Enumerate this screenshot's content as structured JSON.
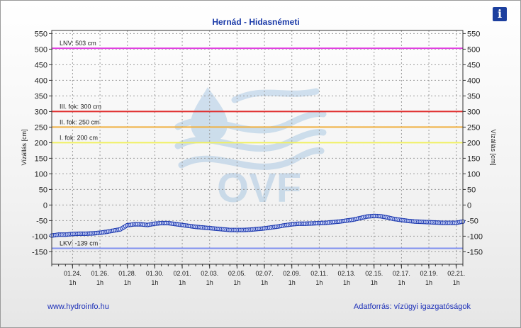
{
  "info_icon": {
    "name": "info-icon",
    "glyph": "i"
  },
  "footer": {
    "site": "www.hydroinfo.hu",
    "source": "Adatforrás: vízügyi igazgatóságok"
  },
  "watermark": {
    "text": "OVF"
  },
  "colors": {
    "series": "#1f3bb0",
    "lnv": "#e040e0",
    "fok3": "#e03030",
    "fok2": "#f0b040",
    "fok1": "#f0f060",
    "lkv": "#8090f0",
    "title": "#1a3aa8",
    "footer": "#1c2fb8"
  },
  "chart_data": {
    "type": "line",
    "title": "Hernád - Hidasnémeti",
    "ylabel_left": "Vízállás [cm]",
    "ylabel_right": "Vízállás [cm]",
    "ylim": [
      -190,
      560
    ],
    "yticks": [
      550,
      500,
      450,
      400,
      350,
      300,
      250,
      200,
      150,
      100,
      50,
      0,
      -50,
      -100,
      -150
    ],
    "grid": true,
    "x_range_days": [
      "01.22. 12h",
      "02.21. 12h"
    ],
    "x_ticks": [
      {
        "date": "01.24.",
        "hour": "1h"
      },
      {
        "date": "01.26.",
        "hour": "1h"
      },
      {
        "date": "01.28.",
        "hour": "1h"
      },
      {
        "date": "01.30.",
        "hour": "1h"
      },
      {
        "date": "02.01.",
        "hour": "1h"
      },
      {
        "date": "02.03.",
        "hour": "1h"
      },
      {
        "date": "02.05.",
        "hour": "1h"
      },
      {
        "date": "02.07.",
        "hour": "1h"
      },
      {
        "date": "02.09.",
        "hour": "1h"
      },
      {
        "date": "02.11.",
        "hour": "1h"
      },
      {
        "date": "02.13.",
        "hour": "1h"
      },
      {
        "date": "02.15.",
        "hour": "1h"
      },
      {
        "date": "02.17.",
        "hour": "1h"
      },
      {
        "date": "02.19.",
        "hour": "1h"
      },
      {
        "date": "02.21.",
        "hour": "1h"
      }
    ],
    "reference_lines": [
      {
        "label": "LNV: 503 cm",
        "value": 503,
        "color": "#e040e0"
      },
      {
        "label": "III. fok: 300 cm",
        "value": 300,
        "color": "#e03030"
      },
      {
        "label": "II. fok: 250 cm",
        "value": 250,
        "color": "#f0b040"
      },
      {
        "label": "I. fok: 200 cm",
        "value": 200,
        "color": "#f0f060"
      },
      {
        "label": "LKV: -139 cm",
        "value": -139,
        "color": "#8090f0"
      }
    ],
    "series": [
      {
        "points": [
          [
            "01.22. 12h",
            -98
          ],
          [
            "01.23. 00h",
            -95
          ],
          [
            "01.23. 12h",
            -95
          ],
          [
            "01.24. 00h",
            -93
          ],
          [
            "01.24. 12h",
            -92
          ],
          [
            "01.25. 00h",
            -92
          ],
          [
            "01.25. 12h",
            -91
          ],
          [
            "01.26. 00h",
            -89
          ],
          [
            "01.26. 12h",
            -86
          ],
          [
            "01.27. 00h",
            -82
          ],
          [
            "01.27. 12h",
            -78
          ],
          [
            "01.28. 00h",
            -65
          ],
          [
            "01.28. 12h",
            -62
          ],
          [
            "01.29. 00h",
            -62
          ],
          [
            "01.29. 12h",
            -64
          ],
          [
            "01.30. 00h",
            -60
          ],
          [
            "01.30. 12h",
            -58
          ],
          [
            "01.31. 00h",
            -58
          ],
          [
            "01.31. 12h",
            -61
          ],
          [
            "02.01. 00h",
            -64
          ],
          [
            "02.01. 12h",
            -67
          ],
          [
            "02.02. 00h",
            -70
          ],
          [
            "02.02. 12h",
            -72
          ],
          [
            "02.03. 00h",
            -74
          ],
          [
            "02.03. 12h",
            -76
          ],
          [
            "02.04. 00h",
            -78
          ],
          [
            "02.04. 12h",
            -80
          ],
          [
            "02.05. 00h",
            -80
          ],
          [
            "02.05. 12h",
            -80
          ],
          [
            "02.06. 00h",
            -79
          ],
          [
            "02.06. 12h",
            -77
          ],
          [
            "02.07. 00h",
            -75
          ],
          [
            "02.07. 12h",
            -72
          ],
          [
            "02.08. 00h",
            -69
          ],
          [
            "02.08. 12h",
            -65
          ],
          [
            "02.09. 00h",
            -62
          ],
          [
            "02.09. 12h",
            -60
          ],
          [
            "02.10. 00h",
            -60
          ],
          [
            "02.10. 12h",
            -59
          ],
          [
            "02.11. 00h",
            -58
          ],
          [
            "02.11. 12h",
            -57
          ],
          [
            "02.12. 00h",
            -55
          ],
          [
            "02.12. 12h",
            -53
          ],
          [
            "02.13. 00h",
            -50
          ],
          [
            "02.13. 12h",
            -47
          ],
          [
            "02.14. 00h",
            -42
          ],
          [
            "02.14. 12h",
            -37
          ],
          [
            "02.15. 00h",
            -35
          ],
          [
            "02.15. 12h",
            -36
          ],
          [
            "02.16. 00h",
            -40
          ],
          [
            "02.16. 12h",
            -45
          ],
          [
            "02.17. 00h",
            -48
          ],
          [
            "02.17. 12h",
            -51
          ],
          [
            "02.18. 00h",
            -53
          ],
          [
            "02.18. 12h",
            -54
          ],
          [
            "02.19. 00h",
            -55
          ],
          [
            "02.19. 12h",
            -56
          ],
          [
            "02.20. 00h",
            -57
          ],
          [
            "02.20. 12h",
            -57
          ],
          [
            "02.21. 00h",
            -57
          ],
          [
            "02.21. 12h",
            -53
          ]
        ],
        "values": [
          -98,
          -95,
          -95,
          -93,
          -92,
          -92,
          -91,
          -89,
          -86,
          -82,
          -78,
          -65,
          -62,
          -62,
          -64,
          -60,
          -58,
          -58,
          -61,
          -64,
          -67,
          -70,
          -72,
          -74,
          -76,
          -78,
          -80,
          -80,
          -80,
          -79,
          -77,
          -75,
          -72,
          -69,
          -65,
          -62,
          -60,
          -60,
          -59,
          -58,
          -57,
          -55,
          -53,
          -50,
          -47,
          -42,
          -37,
          -35,
          -36,
          -40,
          -45,
          -48,
          -51,
          -53,
          -54,
          -55,
          -56,
          -57,
          -57,
          -57,
          -53
        ],
        "step_hours": 12
      }
    ]
  }
}
